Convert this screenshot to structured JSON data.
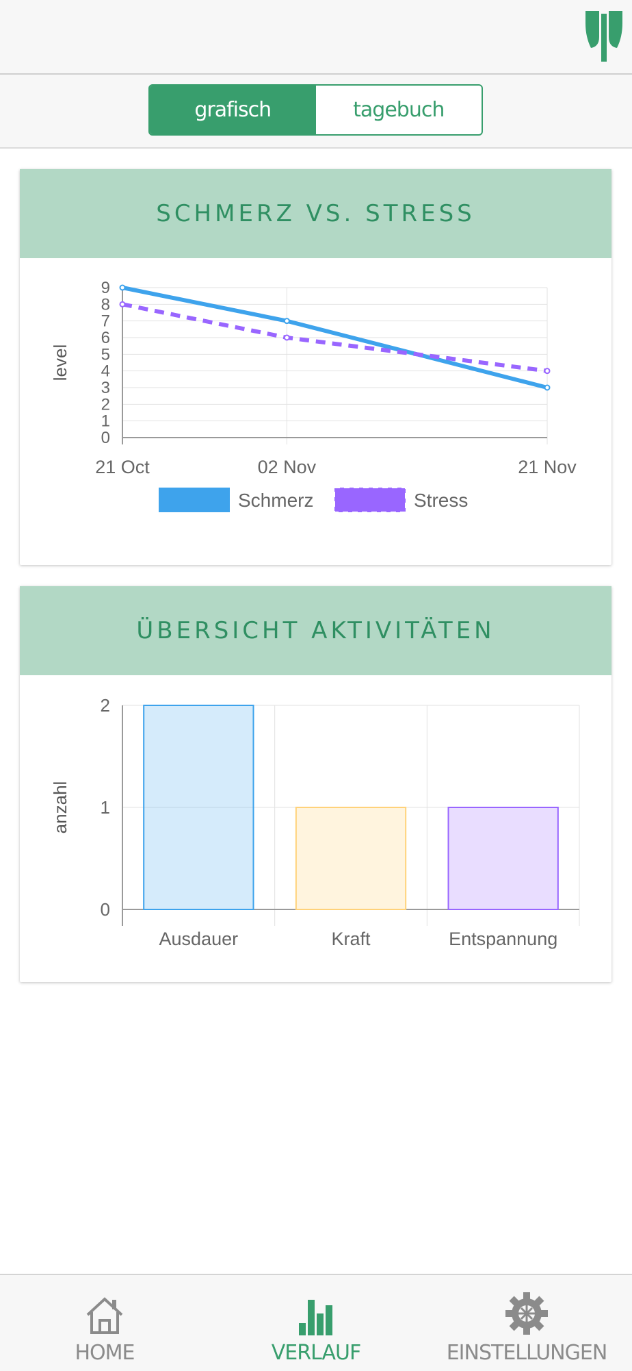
{
  "segment": {
    "grafisch": "grafisch",
    "tagebuch": "tagebuch",
    "active": "grafisch"
  },
  "colors": {
    "accent": "#389e6d",
    "header_bg": "#b2d8c5",
    "schmerz": "#3ea3ec",
    "stress": "#9966ff",
    "kraft": "#ffd27a",
    "entspannung": "#9966ff"
  },
  "card1": {
    "title": "SCHMERZ VS. STRESS"
  },
  "card2": {
    "title": "ÜBERSICHT AKTIVITÄTEN"
  },
  "chart_data": [
    {
      "type": "line",
      "title": "SCHMERZ VS. STRESS",
      "x": [
        "21 Oct",
        "02 Nov",
        "21 Nov"
      ],
      "x_days": [
        0,
        12,
        31
      ],
      "ylabel": "level",
      "ylim": [
        0,
        9
      ],
      "yticks": [
        0,
        1,
        2,
        3,
        4,
        5,
        6,
        7,
        8,
        9
      ],
      "grid": true,
      "legend": "bottom",
      "series": [
        {
          "name": "Schmerz",
          "values": [
            9,
            7,
            3
          ],
          "style": "solid",
          "color": "#3ea3ec"
        },
        {
          "name": "Stress",
          "values": [
            8,
            6,
            4
          ],
          "style": "dashed",
          "color": "#9966ff"
        }
      ]
    },
    {
      "type": "bar",
      "title": "ÜBERSICHT AKTIVITÄTEN",
      "categories": [
        "Ausdauer",
        "Kraft",
        "Entspannung"
      ],
      "values": [
        2,
        1,
        1
      ],
      "ylabel": "anzahl",
      "ylim": [
        0,
        2
      ],
      "yticks": [
        0,
        1,
        2
      ],
      "grid": true,
      "colors": [
        "#3ea3ec",
        "#ffd27a",
        "#9966ff"
      ]
    }
  ],
  "nav": [
    {
      "label": "HOME",
      "icon": "home-icon"
    },
    {
      "label": "VERLAUF",
      "icon": "bar-chart-icon",
      "active": true
    },
    {
      "label": "EINSTELLUNGEN",
      "icon": "gear-icon"
    }
  ]
}
